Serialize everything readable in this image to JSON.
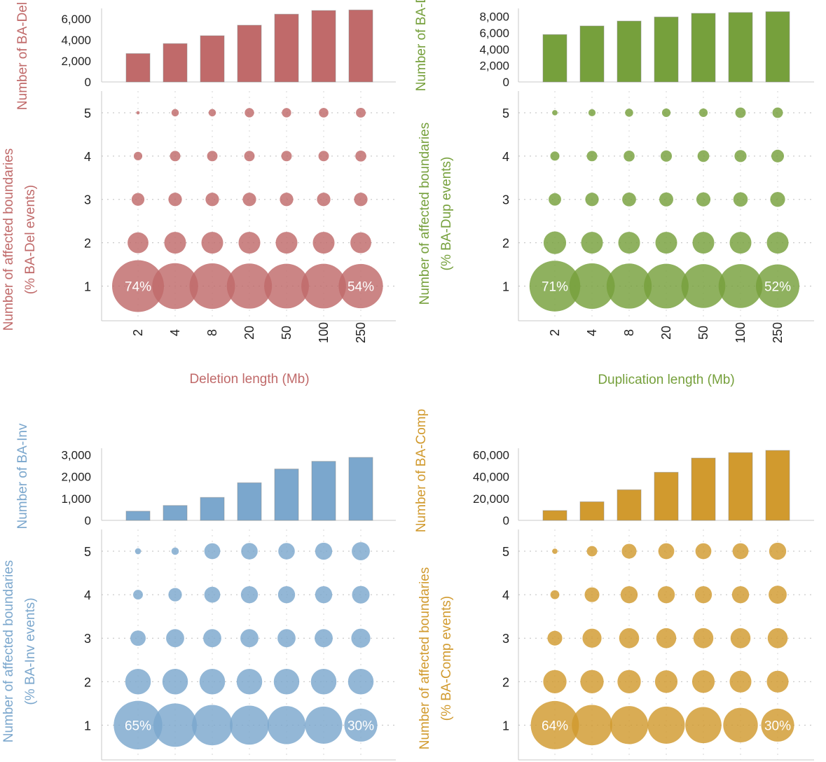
{
  "chart_data": [
    {
      "id": "del",
      "type": "bar+bubble",
      "color": "#c06a6a",
      "bar": {
        "ylabel": "Number of BA-Del",
        "ylim": [
          0,
          7000
        ],
        "yticks": [
          0,
          2000,
          4000,
          6000
        ],
        "ytick_labels": [
          "0",
          "2,000",
          "4,000",
          "6,000"
        ],
        "values": [
          2700,
          3650,
          4400,
          5400,
          6450,
          6800,
          6850
        ]
      },
      "bubble": {
        "ylabel_lines": [
          "Number of affected boundaries",
          "(% BA-Del events)"
        ],
        "xlabel": "Deletion length (Mb)",
        "categories": [
          "2",
          "4",
          "8",
          "20",
          "50",
          "100",
          "250"
        ],
        "rows": [
          1,
          2,
          3,
          4,
          5
        ],
        "percent": [
          [
            74,
            58,
            57,
            56,
            55,
            55,
            54
          ],
          [
            12,
            13,
            13,
            13,
            13,
            13,
            12
          ],
          [
            4.5,
            5,
            5,
            5,
            5,
            5,
            5
          ],
          [
            2,
            3,
            3,
            3,
            3,
            3,
            3.3
          ],
          [
            0.3,
            1.5,
            1.5,
            2.4,
            2.4,
            2.5,
            2.6
          ]
        ],
        "labels": [
          {
            "row": 1,
            "col": 0,
            "text": "74%"
          },
          {
            "row": 1,
            "col": 6,
            "text": "54%"
          }
        ]
      }
    },
    {
      "id": "dup",
      "type": "bar+bubble",
      "color": "#76a03c",
      "bar": {
        "ylabel": "Number of BA-Dup",
        "ylim": [
          0,
          9000
        ],
        "yticks": [
          0,
          2000,
          4000,
          6000,
          8000
        ],
        "ytick_labels": [
          "0",
          "2,000",
          "4,000",
          "6,000",
          "8,000"
        ],
        "values": [
          5800,
          6850,
          7450,
          7950,
          8400,
          8500,
          8600
        ]
      },
      "bubble": {
        "ylabel_lines": [
          "Number of affected boundaries",
          "(% BA-Dup events)"
        ],
        "xlabel": "Duplication length (Mb)",
        "categories": [
          "2",
          "4",
          "8",
          "20",
          "50",
          "100",
          "250"
        ],
        "rows": [
          1,
          2,
          3,
          4,
          5
        ],
        "percent": [
          [
            71,
            57,
            56,
            55,
            53,
            53,
            52
          ],
          [
            14,
            13,
            13,
            13,
            13,
            13,
            13
          ],
          [
            4.3,
            5,
            5.3,
            5.4,
            5.5,
            5.7,
            6.1
          ],
          [
            2.3,
            3,
            3.3,
            3.5,
            3.8,
            4,
            4.4
          ],
          [
            0.8,
            1.4,
            1.8,
            2,
            2,
            3,
            3
          ]
        ],
        "labels": [
          {
            "row": 1,
            "col": 0,
            "text": "71%"
          },
          {
            "row": 1,
            "col": 6,
            "text": "52%"
          }
        ]
      }
    },
    {
      "id": "inv",
      "type": "bar+bubble",
      "color": "#7ba7cd",
      "bar": {
        "ylabel": "Number of BA-Inv",
        "ylim": [
          0,
          3300
        ],
        "yticks": [
          0,
          1000,
          2000,
          3000
        ],
        "ytick_labels": [
          "0",
          "1,000",
          "2,000",
          "3,000"
        ],
        "values": [
          420,
          680,
          1050,
          1720,
          2350,
          2700,
          2880
        ]
      },
      "bubble": {
        "ylabel_lines": [
          "Number of affected boundaries",
          "(% BA-Inv events)"
        ],
        "xlabel": "",
        "categories": [
          "2",
          "4",
          "8",
          "20",
          "50",
          "100",
          "250"
        ],
        "rows": [
          1,
          2,
          3,
          4,
          5
        ],
        "percent": [
          [
            65,
            52,
            45,
            42,
            40,
            38,
            30
          ],
          [
            18,
            18,
            18,
            18,
            18,
            18,
            18
          ],
          [
            6.5,
            9,
            9,
            9,
            9,
            9,
            10
          ],
          [
            2.6,
            5,
            7,
            8,
            8,
            8,
            8.5
          ],
          [
            1,
            1.5,
            7,
            7.5,
            7.5,
            8,
            9
          ]
        ],
        "labels": [
          {
            "row": 1,
            "col": 0,
            "text": "65%"
          },
          {
            "row": 1,
            "col": 6,
            "text": "30%"
          }
        ]
      }
    },
    {
      "id": "comp",
      "type": "bar+bubble",
      "color": "#d19a2e",
      "bar": {
        "ylabel": "Number of BA-Comp",
        "ylim": [
          0,
          66000
        ],
        "yticks": [
          0,
          20000,
          40000,
          60000
        ],
        "ytick_labels": [
          "0",
          "20,000",
          "40,000",
          "60,000"
        ],
        "values": [
          9000,
          17000,
          28000,
          44000,
          57000,
          62000,
          64000
        ]
      },
      "bubble": {
        "ylabel_lines": [
          "Number of affected boundaries",
          "(% BA-Comp events)"
        ],
        "xlabel": "",
        "categories": [
          "2",
          "4",
          "8",
          "20",
          "50",
          "100",
          "250"
        ],
        "rows": [
          1,
          2,
          3,
          4,
          5
        ],
        "percent": [
          [
            64,
            45,
            40,
            38,
            36,
            33,
            30
          ],
          [
            15,
            15,
            15,
            14,
            14,
            13,
            13
          ],
          [
            6,
            10,
            11,
            11,
            11,
            11,
            11
          ],
          [
            2.2,
            6,
            8,
            8,
            8,
            8,
            9
          ],
          [
            0.8,
            3,
            6,
            7,
            7,
            7,
            8
          ]
        ],
        "labels": [
          {
            "row": 1,
            "col": 0,
            "text": "64%"
          },
          {
            "row": 1,
            "col": 6,
            "text": "30%"
          }
        ]
      }
    }
  ]
}
